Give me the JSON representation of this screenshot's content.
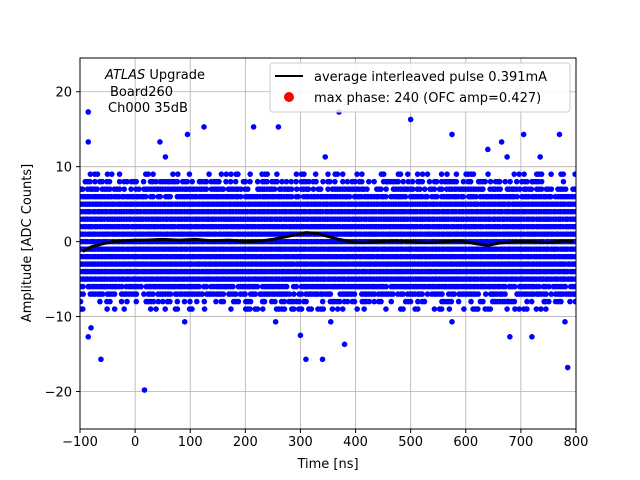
{
  "chart_data": {
    "type": "scatter",
    "title": "",
    "xlabel": "Time [ns]",
    "ylabel": "Amplitude [ADC Counts]",
    "xlim": [
      -100,
      800
    ],
    "ylim": [
      -25,
      24.5
    ],
    "xticks": [
      -100,
      0,
      100,
      200,
      300,
      400,
      500,
      600,
      700,
      800
    ],
    "yticks": [
      -20,
      -10,
      0,
      10,
      20
    ],
    "grid": true,
    "legend_position": "top-right",
    "annotation": {
      "italic_part": "ATLAS",
      "line1_rest": " Upgrade",
      "line2": "Board260",
      "line3": "Ch000 35dB"
    },
    "series": [
      {
        "name": "average interleaved pulse 0.391mA",
        "kind": "line",
        "color": "#000000",
        "x": [
          -95,
          -80,
          -60,
          -40,
          -20,
          0,
          20,
          50,
          80,
          110,
          140,
          170,
          200,
          230,
          250,
          270,
          290,
          310,
          330,
          350,
          370,
          390,
          410,
          440,
          470,
          500,
          530,
          560,
          590,
          620,
          640,
          660,
          690,
          720,
          750,
          780,
          795
        ],
        "y": [
          -1.3,
          -0.7,
          -0.3,
          0.0,
          0.1,
          0.2,
          0.2,
          0.3,
          0.2,
          0.3,
          0.1,
          0.2,
          0.0,
          0.1,
          0.3,
          0.6,
          0.9,
          1.2,
          1.1,
          0.7,
          0.3,
          0.0,
          -0.1,
          0.0,
          0.1,
          0.0,
          -0.1,
          0.0,
          0.1,
          -0.3,
          -0.5,
          -0.2,
          0.0,
          0.0,
          -0.1,
          0.1,
          0.0
        ]
      },
      {
        "name": "max phase: 240 (OFC amp=0.427)",
        "kind": "scatter",
        "color": "#ff0000"
      },
      {
        "name": "",
        "kind": "scatter",
        "color": "#0000ff",
        "x_range": [
          -100,
          800
        ],
        "band_levels": [
          -9,
          -8,
          -7,
          -6,
          -5,
          -4,
          -3,
          -2,
          -1,
          0,
          1,
          2,
          3,
          4,
          5,
          6,
          7,
          8,
          9
        ],
        "outliers": [
          {
            "x": 17,
            "y": -19.8
          },
          {
            "x": -62,
            "y": -15.7
          },
          {
            "x": 785,
            "y": -16.8
          },
          {
            "x": 310,
            "y": -15.7
          },
          {
            "x": 340,
            "y": -15.7
          },
          {
            "x": 380,
            "y": -13.7
          },
          {
            "x": 720,
            "y": -12.7
          },
          {
            "x": 680,
            "y": -12.7
          },
          {
            "x": -85,
            "y": -12.7
          },
          {
            "x": -80,
            "y": -11.5
          },
          {
            "x": 90,
            "y": -10.7
          },
          {
            "x": 255,
            "y": -10.7
          },
          {
            "x": 300,
            "y": -12.5
          },
          {
            "x": 355,
            "y": -10.7
          },
          {
            "x": 575,
            "y": -10.7
          },
          {
            "x": 780,
            "y": -10.7
          },
          {
            "x": 500,
            "y": 16.3
          },
          {
            "x": 370,
            "y": 17.3
          },
          {
            "x": 125,
            "y": 15.3
          },
          {
            "x": 215,
            "y": 15.3
          },
          {
            "x": 260,
            "y": 15.3
          },
          {
            "x": 575,
            "y": 14.3
          },
          {
            "x": 770,
            "y": 14.3
          },
          {
            "x": -85,
            "y": 13.3
          },
          {
            "x": 95,
            "y": 14.3
          },
          {
            "x": 665,
            "y": 13.3
          },
          {
            "x": 705,
            "y": 14.3
          },
          {
            "x": 45,
            "y": 13.3
          },
          {
            "x": -85,
            "y": 17.3
          },
          {
            "x": 55,
            "y": 11.3
          },
          {
            "x": 735,
            "y": 11.3
          },
          {
            "x": 640,
            "y": 12.3
          },
          {
            "x": 345,
            "y": 11.3
          },
          {
            "x": 675,
            "y": 11.3
          }
        ]
      }
    ]
  }
}
